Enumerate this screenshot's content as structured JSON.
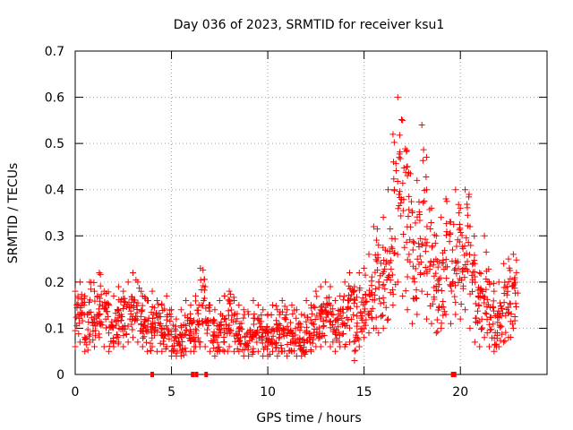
{
  "chart_data": {
    "type": "scatter",
    "title": "Day 036 of 2023, SRMTID for receiver ksu1",
    "xlabel": "GPS time / hours",
    "ylabel": "SRMTID / TECUs",
    "xlim": [
      0,
      24.5
    ],
    "ylim": [
      0,
      0.7
    ],
    "x_ticks": [
      0,
      5,
      10,
      15,
      20
    ],
    "y_ticks": [
      0,
      0.1,
      0.2,
      0.3,
      0.4,
      0.5,
      0.6,
      0.7
    ],
    "x_tick_labels": [
      "0",
      "5",
      "10",
      "15",
      "20"
    ],
    "y_tick_labels": [
      "0",
      "0.1",
      "0.2",
      "0.3",
      "0.4",
      "0.5",
      "0.6",
      "0.7"
    ],
    "grid": true,
    "marker": "+",
    "series": [
      {
        "name": "SRMTID ksu1",
        "color": "#ff0000",
        "x": [
          0.0,
          0.25,
          0.5,
          0.75,
          1.0,
          1.25,
          1.5,
          1.75,
          2.0,
          2.25,
          2.5,
          2.75,
          3.0,
          3.25,
          3.5,
          3.75,
          4.0,
          4.25,
          4.5,
          4.75,
          5.0,
          5.25,
          5.5,
          5.75,
          6.0,
          6.25,
          6.5,
          6.75,
          7.0,
          7.25,
          7.5,
          7.75,
          8.0,
          8.25,
          8.5,
          8.75,
          9.0,
          9.25,
          9.5,
          9.75,
          10.0,
          10.25,
          10.5,
          10.75,
          11.0,
          11.25,
          11.5,
          11.75,
          12.0,
          12.25,
          12.5,
          12.75,
          13.0,
          13.25,
          13.5,
          13.75,
          14.0,
          14.25,
          14.5,
          14.75,
          15.0,
          15.25,
          15.5,
          15.75,
          16.0,
          16.25,
          16.5,
          16.75,
          17.0,
          17.25,
          17.5,
          17.75,
          18.0,
          18.25,
          18.5,
          18.75,
          19.0,
          19.25,
          19.5,
          19.75,
          20.0,
          20.25,
          20.5,
          20.75,
          21.0,
          21.25,
          21.5,
          21.75,
          22.0,
          22.25,
          22.5,
          22.75
        ],
        "y": [
          0.12,
          0.14,
          0.1,
          0.13,
          0.11,
          0.15,
          0.12,
          0.09,
          0.11,
          0.13,
          0.12,
          0.14,
          0.15,
          0.13,
          0.11,
          0.1,
          0.12,
          0.1,
          0.09,
          0.11,
          0.08,
          0.07,
          0.08,
          0.1,
          0.09,
          0.11,
          0.16,
          0.12,
          0.09,
          0.08,
          0.1,
          0.11,
          0.12,
          0.1,
          0.09,
          0.08,
          0.07,
          0.1,
          0.09,
          0.08,
          0.07,
          0.09,
          0.08,
          0.1,
          0.08,
          0.09,
          0.08,
          0.07,
          0.1,
          0.09,
          0.11,
          0.12,
          0.13,
          0.12,
          0.1,
          0.11,
          0.13,
          0.15,
          0.12,
          0.14,
          0.15,
          0.17,
          0.2,
          0.18,
          0.2,
          0.24,
          0.35,
          0.45,
          0.38,
          0.3,
          0.22,
          0.28,
          0.38,
          0.25,
          0.22,
          0.18,
          0.2,
          0.26,
          0.22,
          0.28,
          0.25,
          0.3,
          0.22,
          0.15,
          0.14,
          0.18,
          0.12,
          0.1,
          0.12,
          0.15,
          0.18,
          0.2
        ],
        "y_low": [
          0.06,
          0.07,
          0.05,
          0.07,
          0.06,
          0.08,
          0.06,
          0.05,
          0.06,
          0.07,
          0.06,
          0.07,
          0.08,
          0.07,
          0.06,
          0.05,
          0.06,
          0.05,
          0.05,
          0.06,
          0.04,
          0.04,
          0.04,
          0.05,
          0.05,
          0.06,
          0.07,
          0.06,
          0.05,
          0.04,
          0.05,
          0.05,
          0.06,
          0.05,
          0.05,
          0.04,
          0.04,
          0.05,
          0.05,
          0.04,
          0.04,
          0.05,
          0.04,
          0.05,
          0.04,
          0.05,
          0.04,
          0.04,
          0.05,
          0.05,
          0.06,
          0.06,
          0.07,
          0.06,
          0.05,
          0.06,
          0.06,
          0.07,
          0.03,
          0.06,
          0.08,
          0.09,
          0.1,
          0.09,
          0.1,
          0.12,
          0.15,
          0.2,
          0.17,
          0.14,
          0.11,
          0.13,
          0.18,
          0.12,
          0.11,
          0.09,
          0.1,
          0.13,
          0.11,
          0.13,
          0.12,
          0.14,
          0.1,
          0.07,
          0.06,
          0.08,
          0.06,
          0.05,
          0.06,
          0.07,
          0.08,
          0.1
        ],
        "y_high": [
          0.18,
          0.2,
          0.17,
          0.2,
          0.18,
          0.22,
          0.18,
          0.15,
          0.17,
          0.19,
          0.18,
          0.2,
          0.22,
          0.2,
          0.17,
          0.16,
          0.18,
          0.16,
          0.15,
          0.17,
          0.14,
          0.12,
          0.14,
          0.16,
          0.15,
          0.17,
          0.23,
          0.19,
          0.15,
          0.14,
          0.16,
          0.17,
          0.18,
          0.16,
          0.15,
          0.14,
          0.13,
          0.16,
          0.15,
          0.14,
          0.13,
          0.15,
          0.14,
          0.16,
          0.14,
          0.15,
          0.14,
          0.13,
          0.16,
          0.15,
          0.18,
          0.19,
          0.2,
          0.19,
          0.16,
          0.17,
          0.2,
          0.22,
          0.19,
          0.22,
          0.23,
          0.26,
          0.32,
          0.28,
          0.34,
          0.4,
          0.52,
          0.6,
          0.55,
          0.45,
          0.35,
          0.42,
          0.54,
          0.4,
          0.36,
          0.3,
          0.34,
          0.38,
          0.33,
          0.4,
          0.36,
          0.4,
          0.32,
          0.24,
          0.22,
          0.3,
          0.2,
          0.18,
          0.2,
          0.24,
          0.25,
          0.26
        ]
      }
    ],
    "gap_markers_x": [
      4.0,
      6.1,
      6.3,
      6.8,
      19.6,
      19.7
    ]
  }
}
